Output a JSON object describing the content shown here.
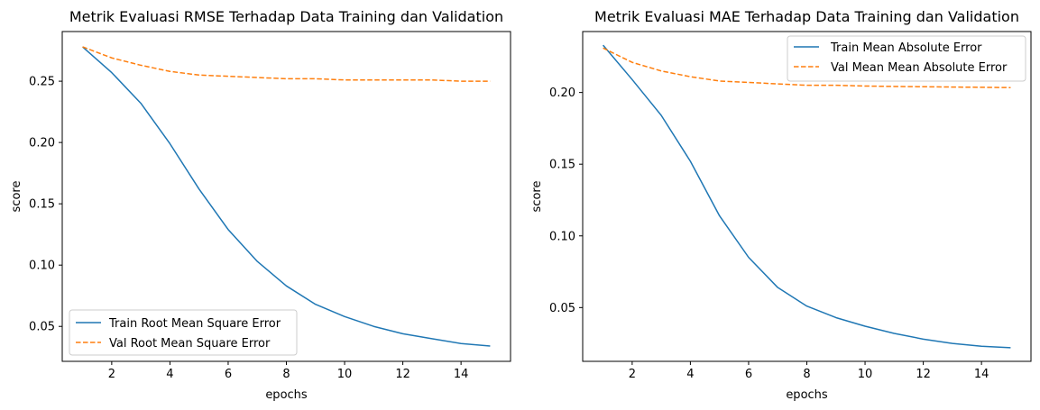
{
  "chart_data": [
    {
      "type": "line",
      "title": "Metrik Evaluasi RMSE Terhadap Data Training dan Validation",
      "xlabel": "epochs",
      "ylabel": "score",
      "xlim": [
        0.3,
        15.7
      ],
      "ylim": [
        0.0215,
        0.2905
      ],
      "xticks": [
        2,
        4,
        6,
        8,
        10,
        12,
        14
      ],
      "xtick_labels": [
        "2",
        "4",
        "6",
        "8",
        "10",
        "12",
        "14"
      ],
      "yticks": [
        0.05,
        0.1,
        0.15,
        0.2,
        0.25
      ],
      "ytick_labels": [
        "0.05",
        "0.10",
        "0.15",
        "0.20",
        "0.25"
      ],
      "grid": false,
      "legend_position": "lower-left",
      "x": [
        1,
        2,
        3,
        4,
        5,
        6,
        7,
        8,
        9,
        10,
        11,
        12,
        13,
        14,
        15
      ],
      "series": [
        {
          "name": "Train Root Mean Square Error",
          "color": "#1f77b4",
          "style": "solid",
          "values": [
            0.278,
            0.257,
            0.232,
            0.199,
            0.162,
            0.129,
            0.103,
            0.083,
            0.068,
            0.058,
            0.05,
            0.044,
            0.04,
            0.036,
            0.034
          ]
        },
        {
          "name": "Val Root Mean Square Error",
          "color": "#ff7f0e",
          "style": "dashed",
          "values": [
            0.278,
            0.269,
            0.263,
            0.258,
            0.255,
            0.254,
            0.253,
            0.252,
            0.252,
            0.251,
            0.251,
            0.251,
            0.251,
            0.25,
            0.25
          ]
        }
      ]
    },
    {
      "type": "line",
      "title": "Metrik Evaluasi MAE Terhadap Data Training dan Validation",
      "xlabel": "epochs",
      "ylabel": "score",
      "xlim": [
        0.3,
        15.7
      ],
      "ylim": [
        0.0125,
        0.2425
      ],
      "xticks": [
        2,
        4,
        6,
        8,
        10,
        12,
        14
      ],
      "xtick_labels": [
        "2",
        "4",
        "6",
        "8",
        "10",
        "12",
        "14"
      ],
      "yticks": [
        0.05,
        0.1,
        0.15,
        0.2
      ],
      "ytick_labels": [
        "0.05",
        "0.10",
        "0.15",
        "0.20"
      ],
      "grid": false,
      "legend_position": "upper-right",
      "x": [
        1,
        2,
        3,
        4,
        5,
        6,
        7,
        8,
        9,
        10,
        11,
        12,
        13,
        14,
        15
      ],
      "series": [
        {
          "name": "Train Mean Absolute Error",
          "color": "#1f77b4",
          "style": "solid",
          "values": [
            0.233,
            0.209,
            0.184,
            0.152,
            0.114,
            0.085,
            0.064,
            0.051,
            0.043,
            0.037,
            0.032,
            0.028,
            0.025,
            0.023,
            0.022
          ]
        },
        {
          "name": "Val Mean Mean Absolute Error",
          "color": "#ff7f0e",
          "style": "dashed",
          "values": [
            0.231,
            0.221,
            0.215,
            0.211,
            0.208,
            0.207,
            0.206,
            0.205,
            0.205,
            0.2045,
            0.2042,
            0.204,
            0.2038,
            0.2036,
            0.2034
          ]
        }
      ]
    }
  ]
}
